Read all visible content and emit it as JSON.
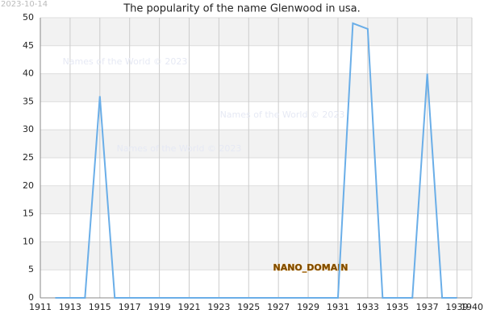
{
  "chart_data": {
    "type": "line",
    "title": "The popularity of the name Glenwood in usa.",
    "date": "2023-10-14",
    "watermarks": [
      "Names of the World © 2023",
      "Names of the World © 2023",
      "Names of the World © 2023"
    ],
    "badge": "NANO_DOMAIN",
    "x": [
      1912,
      1913,
      1914,
      1915,
      1916,
      1917,
      1918,
      1919,
      1920,
      1921,
      1922,
      1923,
      1924,
      1925,
      1926,
      1927,
      1928,
      1929,
      1930,
      1931,
      1932,
      1933,
      1934,
      1935,
      1936,
      1937,
      1938,
      1939
    ],
    "series": [
      {
        "name": "Glenwood",
        "color": "#6aaee8",
        "values": [
          0,
          0,
          0,
          36,
          0,
          0,
          0,
          0,
          0,
          0,
          0,
          0,
          0,
          0,
          0,
          0,
          0,
          0,
          0,
          0,
          49,
          48,
          0,
          0,
          0,
          40,
          0,
          0
        ]
      }
    ],
    "xlim": [
      1911,
      1940
    ],
    "xticks": [
      1911,
      1913,
      1915,
      1917,
      1919,
      1921,
      1923,
      1925,
      1927,
      1929,
      1931,
      1933,
      1935,
      1937,
      1939,
      1940
    ],
    "ylim": [
      0,
      50
    ],
    "yticks": [
      0,
      5,
      10,
      15,
      20,
      25,
      30,
      35,
      40,
      45,
      50
    ],
    "grid": true,
    "legend": false
  }
}
